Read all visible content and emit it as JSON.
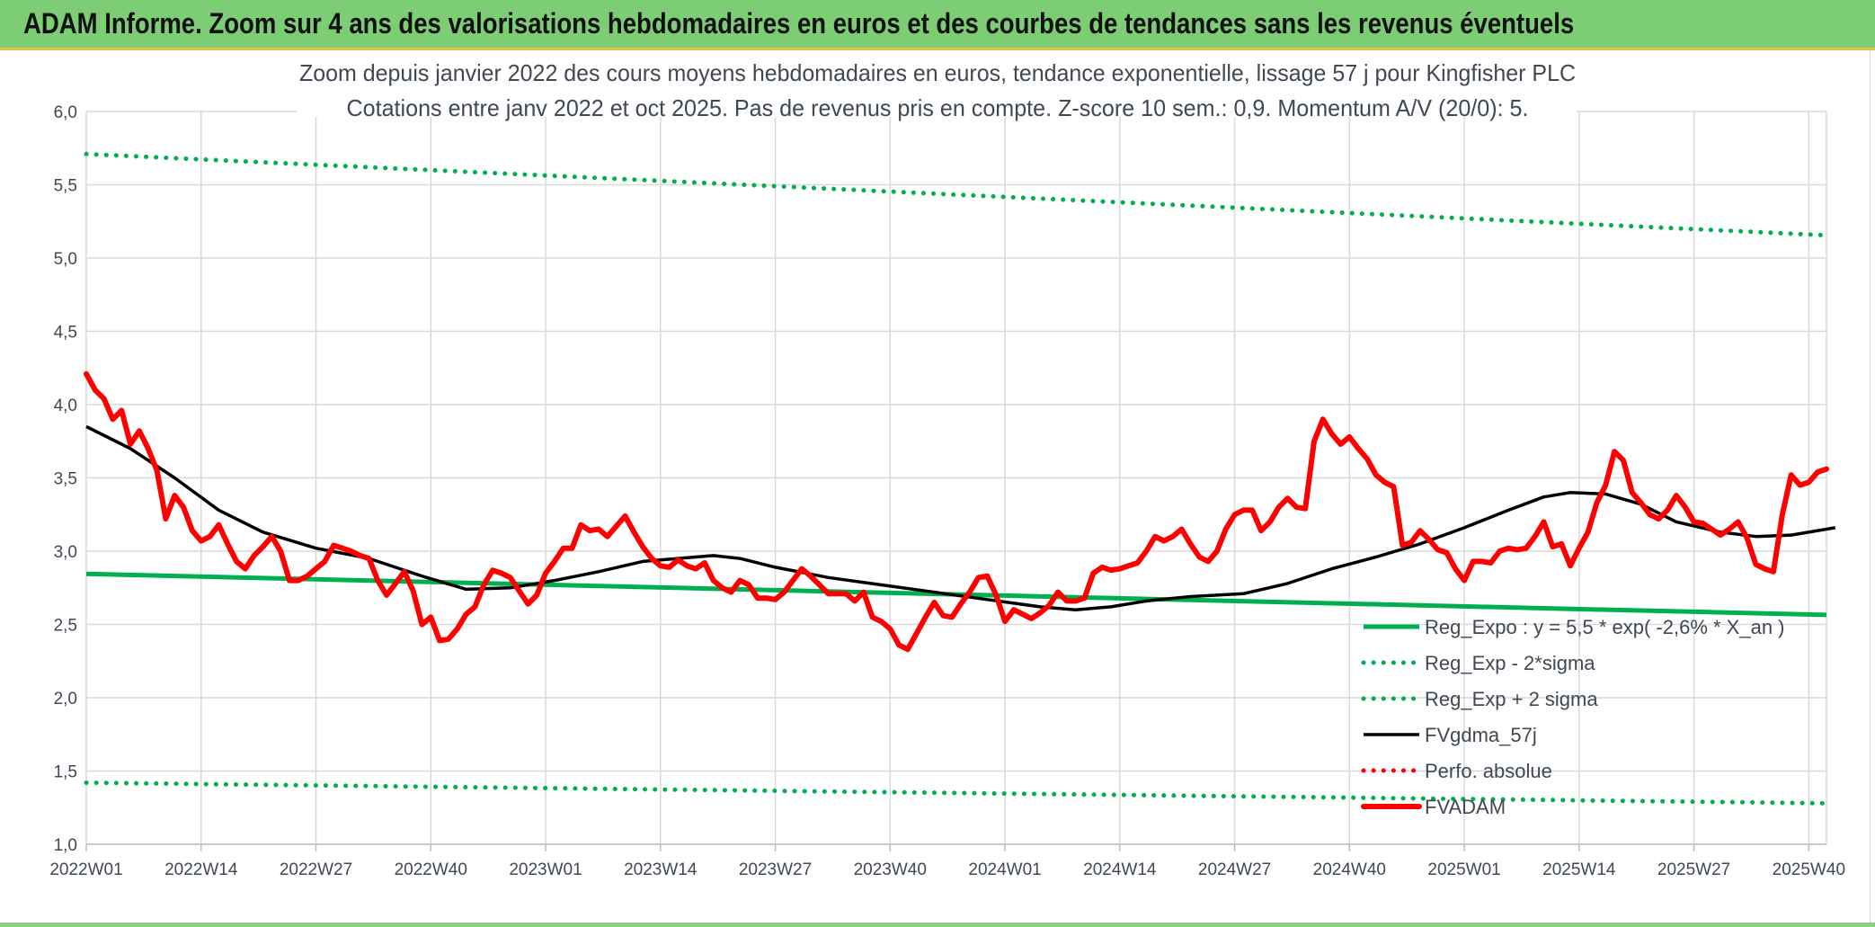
{
  "banner": {
    "title": "ADAM Informe. Zoom sur 4 ans des valorisations hebdomadaires en euros et des courbes de tendances sans les revenus éventuels"
  },
  "chart_data": {
    "type": "line",
    "title": "Zoom depuis janvier 2022 des cours moyens hebdomadaires en euros, tendance exponentielle, lissage 57 j pour Kingfisher PLC",
    "subtitle": "Cotations entre janv 2022 et oct 2025. Pas de revenus pris en compte. Z-score 10 sem.: 0,9. Momentum A/V (20/0): 5.",
    "xlabel": "",
    "ylabel": "",
    "ylim": [
      1.0,
      6.0
    ],
    "y_ticks": [
      "1,0",
      "1,5",
      "2,0",
      "2,5",
      "3,0",
      "3,5",
      "4,0",
      "4,5",
      "5,0",
      "5,5",
      "6,0"
    ],
    "x_ticks": [
      "2022W01",
      "2022W14",
      "2022W27",
      "2022W40",
      "2023W01",
      "2023W14",
      "2023W27",
      "2023W40",
      "2024W01",
      "2024W14",
      "2024W27",
      "2024W40",
      "2025W01",
      "2025W14",
      "2025W27",
      "2025W40"
    ],
    "grid": true,
    "legend_position": "bottom-right",
    "week_count": 198,
    "series": [
      {
        "name": "Reg_Expo : y = 5,5 * exp( -2,6% *  X_an )",
        "style": "solid",
        "color": "#00b050",
        "points": [
          [
            0,
            2.845
          ],
          [
            197,
            2.565
          ]
        ]
      },
      {
        "name": "Reg_Exp - 2*sigma",
        "style": "dotted",
        "color": "#00b050",
        "points": [
          [
            0,
            1.42
          ],
          [
            197,
            1.28
          ]
        ]
      },
      {
        "name": "Reg_Exp + 2 sigma",
        "style": "dotted",
        "color": "#00b050",
        "points": [
          [
            0,
            5.71
          ],
          [
            197,
            5.155
          ]
        ]
      },
      {
        "name": "FVgdma_57j",
        "style": "solid",
        "color": "#000000",
        "points": [
          [
            0,
            3.85
          ],
          [
            5,
            3.7
          ],
          [
            10,
            3.5
          ],
          [
            15,
            3.28
          ],
          [
            20,
            3.13
          ],
          [
            26,
            3.02
          ],
          [
            32,
            2.95
          ],
          [
            38,
            2.83
          ],
          [
            43,
            2.74
          ],
          [
            48,
            2.75
          ],
          [
            53,
            2.8
          ],
          [
            58,
            2.86
          ],
          [
            63,
            2.93
          ],
          [
            67,
            2.95
          ],
          [
            71,
            2.97
          ],
          [
            74,
            2.95
          ],
          [
            78,
            2.89
          ],
          [
            84,
            2.82
          ],
          [
            90,
            2.77
          ],
          [
            96,
            2.72
          ],
          [
            102,
            2.67
          ],
          [
            108,
            2.62
          ],
          [
            112,
            2.6
          ],
          [
            116,
            2.62
          ],
          [
            120,
            2.66
          ],
          [
            125,
            2.69
          ],
          [
            131,
            2.71
          ],
          [
            136,
            2.78
          ],
          [
            141,
            2.88
          ],
          [
            146,
            2.96
          ],
          [
            151,
            3.05
          ],
          [
            156,
            3.16
          ],
          [
            161,
            3.28
          ],
          [
            165,
            3.37
          ],
          [
            168,
            3.4
          ],
          [
            172,
            3.39
          ],
          [
            176,
            3.32
          ],
          [
            180,
            3.2
          ],
          [
            185,
            3.13
          ],
          [
            189,
            3.1
          ],
          [
            193,
            3.11
          ],
          [
            198,
            3.16
          ]
        ]
      },
      {
        "name": "Perfo. absolue",
        "style": "dotted",
        "color": "#ff0000",
        "points": []
      },
      {
        "name": "FVADAM",
        "style": "solid",
        "color": "#ff0000",
        "points": [
          [
            0,
            4.21
          ],
          [
            1,
            4.1
          ],
          [
            2,
            4.04
          ],
          [
            3,
            3.9
          ],
          [
            4,
            3.96
          ],
          [
            5,
            3.73
          ],
          [
            6,
            3.82
          ],
          [
            7,
            3.7
          ],
          [
            8,
            3.55
          ],
          [
            9,
            3.22
          ],
          [
            10,
            3.38
          ],
          [
            11,
            3.3
          ],
          [
            12,
            3.14
          ],
          [
            13,
            3.07
          ],
          [
            14,
            3.1
          ],
          [
            15,
            3.18
          ],
          [
            16,
            3.05
          ],
          [
            17,
            2.93
          ],
          [
            18,
            2.88
          ],
          [
            19,
            2.97
          ],
          [
            20,
            3.03
          ],
          [
            21,
            3.1
          ],
          [
            22,
            3.0
          ],
          [
            23,
            2.8
          ],
          [
            24,
            2.8
          ],
          [
            25,
            2.83
          ],
          [
            26,
            2.88
          ],
          [
            27,
            2.93
          ],
          [
            28,
            3.04
          ],
          [
            29,
            3.02
          ],
          [
            30,
            3.0
          ],
          [
            31,
            2.97
          ],
          [
            32,
            2.95
          ],
          [
            33,
            2.8
          ],
          [
            34,
            2.7
          ],
          [
            35,
            2.78
          ],
          [
            36,
            2.86
          ],
          [
            37,
            2.73
          ],
          [
            38,
            2.5
          ],
          [
            39,
            2.55
          ],
          [
            40,
            2.39
          ],
          [
            41,
            2.4
          ],
          [
            42,
            2.47
          ],
          [
            43,
            2.57
          ],
          [
            44,
            2.62
          ],
          [
            45,
            2.77
          ],
          [
            46,
            2.87
          ],
          [
            47,
            2.85
          ],
          [
            48,
            2.82
          ],
          [
            49,
            2.73
          ],
          [
            50,
            2.64
          ],
          [
            51,
            2.7
          ],
          [
            52,
            2.85
          ],
          [
            53,
            2.93
          ],
          [
            54,
            3.02
          ],
          [
            55,
            3.02
          ],
          [
            56,
            3.18
          ],
          [
            57,
            3.14
          ],
          [
            58,
            3.15
          ],
          [
            59,
            3.1
          ],
          [
            60,
            3.17
          ],
          [
            61,
            3.24
          ],
          [
            62,
            3.13
          ],
          [
            63,
            3.03
          ],
          [
            64,
            2.95
          ],
          [
            65,
            2.9
          ],
          [
            66,
            2.89
          ],
          [
            67,
            2.94
          ],
          [
            68,
            2.9
          ],
          [
            69,
            2.88
          ],
          [
            70,
            2.92
          ],
          [
            71,
            2.8
          ],
          [
            72,
            2.75
          ],
          [
            73,
            2.72
          ],
          [
            74,
            2.8
          ],
          [
            75,
            2.77
          ],
          [
            76,
            2.68
          ],
          [
            77,
            2.68
          ],
          [
            78,
            2.67
          ],
          [
            79,
            2.72
          ],
          [
            80,
            2.8
          ],
          [
            81,
            2.88
          ],
          [
            82,
            2.83
          ],
          [
            83,
            2.77
          ],
          [
            84,
            2.71
          ],
          [
            85,
            2.71
          ],
          [
            86,
            2.71
          ],
          [
            87,
            2.66
          ],
          [
            88,
            2.72
          ],
          [
            89,
            2.55
          ],
          [
            90,
            2.52
          ],
          [
            91,
            2.47
          ],
          [
            92,
            2.36
          ],
          [
            93,
            2.33
          ],
          [
            94,
            2.44
          ],
          [
            95,
            2.55
          ],
          [
            96,
            2.65
          ],
          [
            97,
            2.56
          ],
          [
            98,
            2.55
          ],
          [
            99,
            2.64
          ],
          [
            100,
            2.72
          ],
          [
            101,
            2.82
          ],
          [
            102,
            2.83
          ],
          [
            103,
            2.7
          ],
          [
            104,
            2.52
          ],
          [
            105,
            2.6
          ],
          [
            106,
            2.57
          ],
          [
            107,
            2.54
          ],
          [
            108,
            2.58
          ],
          [
            109,
            2.63
          ],
          [
            110,
            2.72
          ],
          [
            111,
            2.66
          ],
          [
            112,
            2.66
          ],
          [
            113,
            2.68
          ],
          [
            114,
            2.85
          ],
          [
            115,
            2.89
          ],
          [
            116,
            2.87
          ],
          [
            117,
            2.88
          ],
          [
            118,
            2.9
          ],
          [
            119,
            2.92
          ],
          [
            120,
            3.0
          ],
          [
            121,
            3.1
          ],
          [
            122,
            3.07
          ],
          [
            123,
            3.1
          ],
          [
            124,
            3.15
          ],
          [
            125,
            3.05
          ],
          [
            126,
            2.96
          ],
          [
            127,
            2.93
          ],
          [
            128,
            3.0
          ],
          [
            129,
            3.15
          ],
          [
            130,
            3.25
          ],
          [
            131,
            3.28
          ],
          [
            132,
            3.28
          ],
          [
            133,
            3.14
          ],
          [
            134,
            3.2
          ],
          [
            135,
            3.3
          ],
          [
            136,
            3.36
          ],
          [
            137,
            3.3
          ],
          [
            138,
            3.29
          ],
          [
            139,
            3.75
          ],
          [
            140,
            3.9
          ],
          [
            141,
            3.8
          ],
          [
            142,
            3.73
          ],
          [
            143,
            3.78
          ],
          [
            144,
            3.7
          ],
          [
            145,
            3.63
          ],
          [
            146,
            3.52
          ],
          [
            147,
            3.47
          ],
          [
            148,
            3.44
          ],
          [
            149,
            3.04
          ],
          [
            150,
            3.06
          ],
          [
            151,
            3.14
          ],
          [
            152,
            3.08
          ],
          [
            153,
            3.01
          ],
          [
            154,
            2.99
          ],
          [
            155,
            2.88
          ],
          [
            156,
            2.8
          ],
          [
            157,
            2.93
          ],
          [
            158,
            2.93
          ],
          [
            159,
            2.92
          ],
          [
            160,
            3.0
          ],
          [
            161,
            3.02
          ],
          [
            162,
            3.01
          ],
          [
            163,
            3.02
          ],
          [
            164,
            3.1
          ],
          [
            165,
            3.2
          ],
          [
            166,
            3.03
          ],
          [
            167,
            3.05
          ],
          [
            168,
            2.9
          ],
          [
            169,
            3.02
          ],
          [
            170,
            3.13
          ],
          [
            171,
            3.33
          ],
          [
            172,
            3.45
          ],
          [
            173,
            3.68
          ],
          [
            174,
            3.62
          ],
          [
            175,
            3.4
          ],
          [
            176,
            3.33
          ],
          [
            177,
            3.25
          ],
          [
            178,
            3.22
          ],
          [
            179,
            3.28
          ],
          [
            180,
            3.38
          ],
          [
            181,
            3.3
          ],
          [
            182,
            3.2
          ],
          [
            183,
            3.19
          ],
          [
            184,
            3.15
          ],
          [
            185,
            3.11
          ],
          [
            186,
            3.15
          ],
          [
            187,
            3.2
          ],
          [
            188,
            3.09
          ],
          [
            189,
            2.91
          ],
          [
            190,
            2.88
          ],
          [
            191,
            2.86
          ],
          [
            192,
            3.25
          ],
          [
            193,
            3.52
          ],
          [
            194,
            3.45
          ],
          [
            195,
            3.47
          ],
          [
            196,
            3.54
          ],
          [
            197,
            3.56
          ]
        ]
      }
    ]
  }
}
